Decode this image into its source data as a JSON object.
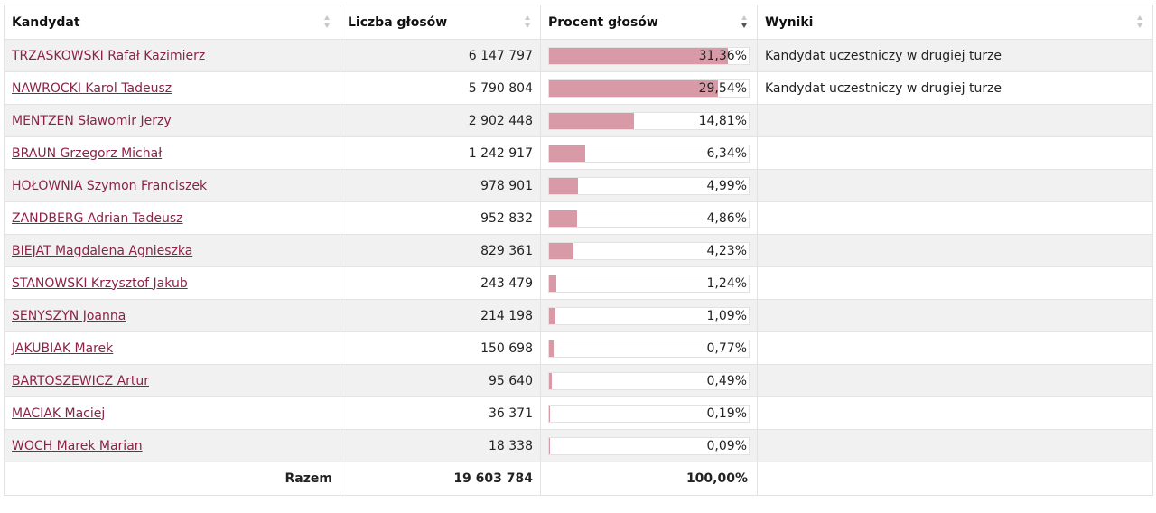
{
  "headers": {
    "candidate": "Kandydat",
    "votes": "Liczba głosów",
    "percent": "Procent głosów",
    "results": "Wyniki"
  },
  "rows": [
    {
      "name": "TRZASKOWSKI Rafał Kazimierz",
      "votes": "6 147 797",
      "percent": "31,36%",
      "share": 31.36,
      "result": "Kandydat uczestniczy w drugiej turze"
    },
    {
      "name": "NAWROCKI Karol Tadeusz",
      "votes": "5 790 804",
      "percent": "29,54%",
      "share": 29.54,
      "result": "Kandydat uczestniczy w drugiej turze"
    },
    {
      "name": "MENTZEN Sławomir Jerzy",
      "votes": "2 902 448",
      "percent": "14,81%",
      "share": 14.81,
      "result": ""
    },
    {
      "name": "BRAUN Grzegorz Michał",
      "votes": "1 242 917",
      "percent": "6,34%",
      "share": 6.34,
      "result": ""
    },
    {
      "name": "HOŁOWNIA Szymon Franciszek",
      "votes": "978 901",
      "percent": "4,99%",
      "share": 4.99,
      "result": ""
    },
    {
      "name": "ZANDBERG Adrian Tadeusz",
      "votes": "952 832",
      "percent": "4,86%",
      "share": 4.86,
      "result": ""
    },
    {
      "name": "BIEJAT Magdalena Agnieszka",
      "votes": "829 361",
      "percent": "4,23%",
      "share": 4.23,
      "result": ""
    },
    {
      "name": "STANOWSKI Krzysztof Jakub",
      "votes": "243 479",
      "percent": "1,24%",
      "share": 1.24,
      "result": ""
    },
    {
      "name": "SENYSZYN Joanna",
      "votes": "214 198",
      "percent": "1,09%",
      "share": 1.09,
      "result": ""
    },
    {
      "name": "JAKUBIAK Marek",
      "votes": "150 698",
      "percent": "0,77%",
      "share": 0.77,
      "result": ""
    },
    {
      "name": "BARTOSZEWICZ Artur",
      "votes": "95 640",
      "percent": "0,49%",
      "share": 0.49,
      "result": ""
    },
    {
      "name": "MACIAK Maciej",
      "votes": "36 371",
      "percent": "0,19%",
      "share": 0.19,
      "result": ""
    },
    {
      "name": "WOCH Marek Marian",
      "votes": "18 338",
      "percent": "0,09%",
      "share": 0.09,
      "result": ""
    }
  ],
  "total": {
    "label": "Razem",
    "votes": "19 603 784",
    "percent": "100,00%"
  },
  "colors": {
    "bar": "#d89aa7",
    "link": "#8b2346"
  },
  "bar_scale_max": 35
}
